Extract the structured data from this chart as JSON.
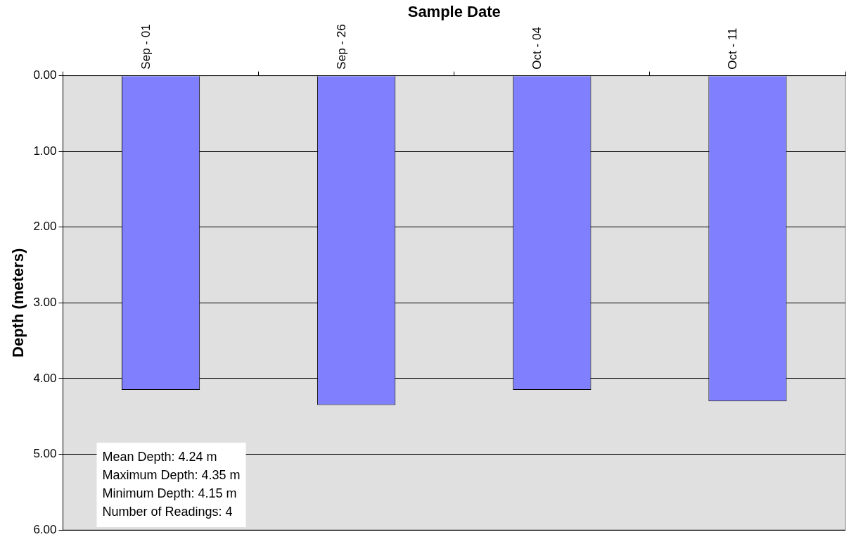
{
  "chart_data": {
    "type": "bar",
    "xlabel": "Sample Date",
    "ylabel": "Depth (meters)",
    "categories": [
      "Sep - 01",
      "Sep - 26",
      "Oct - 04",
      "Oct - 11"
    ],
    "values": [
      4.15,
      4.35,
      4.15,
      4.3
    ],
    "color": "#8080ff",
    "ylim": [
      6,
      0
    ],
    "yticks": [
      {
        "value": 0,
        "label": "0.00"
      },
      {
        "value": 1,
        "label": "1.00"
      },
      {
        "value": 2,
        "label": "2.00"
      },
      {
        "value": 3,
        "label": "3.00"
      },
      {
        "value": 4,
        "label": "4.00"
      },
      {
        "value": 5,
        "label": "5.00"
      },
      {
        "value": 6,
        "label": "6.00"
      }
    ],
    "grid": "y",
    "legend": false,
    "annotations": [
      "Mean Depth: 4.24 m",
      "Maximum Depth: 4.35 m",
      "Minimum Depth: 4.15 m",
      "Number of Readings: 4"
    ]
  }
}
